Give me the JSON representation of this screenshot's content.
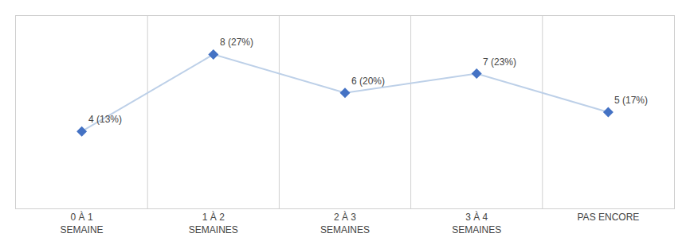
{
  "chart_data": {
    "type": "line",
    "categories": [
      "0 À 1\nSEMAINE",
      "1 À 2\nSEMAINES",
      "2 À 3\nSEMAINES",
      "3 À 4\nSEMAINES",
      "PAS ENCORE"
    ],
    "series": [
      {
        "type": "line",
        "color": "#bdd0e8",
        "line_style": "solid",
        "values": [
          4,
          8,
          6,
          7,
          5
        ]
      },
      {
        "type": "scatter",
        "color": "#4472c4",
        "marker": "diamond",
        "values": [
          4,
          8,
          6,
          7,
          5
        ],
        "value_labels": [
          "4 (13%)",
          "8 (27%)",
          "6 (20%)",
          "7 (23%)",
          "5 (17%)"
        ]
      }
    ],
    "ylim": [
      0,
      10
    ],
    "tick_labels": "x",
    "grid": true
  }
}
